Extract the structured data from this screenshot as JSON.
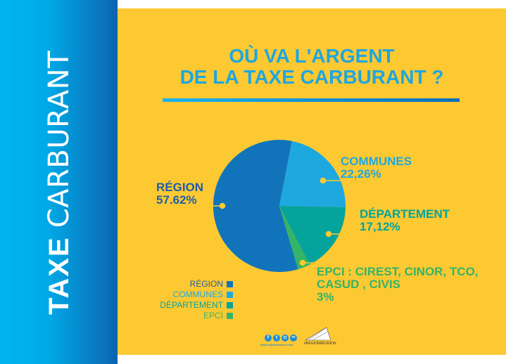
{
  "sidebar": {
    "title_bold": "TAXE",
    "title_light": "CARBURANT"
  },
  "header": {
    "line1": "OÙ VA L'ARGENT",
    "line2": "DE LA TAXE CARBURANT ?"
  },
  "labels": {
    "region": {
      "name": "RÉGION",
      "value": "57.62%"
    },
    "communes": {
      "name": "COMMUNES",
      "value": "22,26%"
    },
    "departement": {
      "name": "DÉPARTEMENT",
      "value": "17,12%"
    },
    "epci": {
      "name": "EPCI : CIREST, CINOR, TCO,",
      "name2": "CASUD , CIVIS",
      "value": "3%"
    }
  },
  "legend": [
    {
      "label": "RÉGION",
      "color": "#1174bb"
    },
    {
      "label": "COMMUNES",
      "color": "#1ea8e0"
    },
    {
      "label": "DÉPARTEMENT",
      "color": "#04a39c"
    },
    {
      "label": "EPCI",
      "color": "#34b468"
    }
  ],
  "footer": {
    "icons": [
      "facebook-icon",
      "twitter-icon",
      "instagram-icon",
      "flickr-icon"
    ],
    "url": "www.regionreunion.com",
    "hashtag": "#REGIONRÉUNION"
  },
  "colors": {
    "background": "#fdc932",
    "region": "#1174bb",
    "communes": "#1ea8e0",
    "departement": "#04a39c",
    "epci": "#34b468"
  },
  "chart_data": {
    "type": "pie",
    "title": "OÙ VA L'ARGENT DE LA TAXE CARBURANT ?",
    "categories": [
      "RÉGION",
      "COMMUNES",
      "DÉPARTEMENT",
      "EPCI : CIREST, CINOR, TCO, CASUD , CIVIS"
    ],
    "values": [
      57.62,
      22.26,
      17.12,
      3
    ],
    "legend": [
      "RÉGION",
      "COMMUNES",
      "DÉPARTEMENT",
      "EPCI"
    ],
    "legend_position": "bottom-left",
    "colors": [
      "#1174bb",
      "#1ea8e0",
      "#04a39c",
      "#34b468"
    ]
  }
}
